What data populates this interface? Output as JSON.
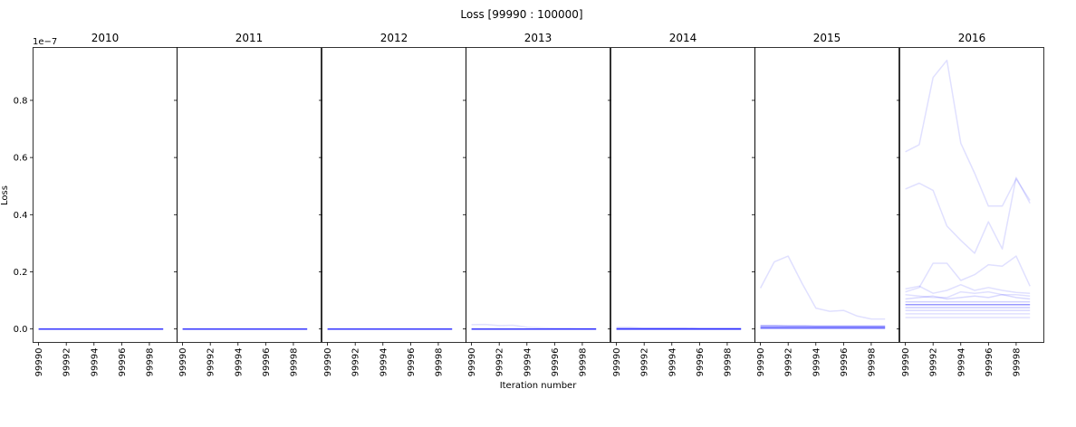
{
  "figure": {
    "suptitle": "Loss [99990 : 100000]",
    "xlabel": "Iteration number",
    "ylabel": "Loss",
    "offset_text": "1e−7"
  },
  "colors": {
    "line": "#0000ff",
    "background": "#ffffff",
    "axes": "#000000"
  },
  "chart_data": {
    "type": "line",
    "title": "Loss [99990 : 100000]",
    "xlabel": "Iteration number",
    "ylabel": "Loss",
    "y_scale_multiplier": 1e-07,
    "xlim": [
      99989.6,
      100000.0
    ],
    "ylim": [
      -0.047,
      0.985
    ],
    "x_ticks": [
      99990,
      99992,
      99994,
      99996,
      99998
    ],
    "y_ticks": [
      0.0,
      0.2,
      0.4,
      0.6,
      0.8
    ],
    "x": [
      99990,
      99991,
      99992,
      99993,
      99994,
      99995,
      99996,
      99997,
      99998,
      99999
    ],
    "grid": false,
    "legend": "none",
    "panels": [
      {
        "title": "2010",
        "series": [
          {
            "values": [
              0,
              0,
              0,
              0,
              0,
              0,
              0,
              0,
              0,
              0
            ],
            "opacity": 0.8
          }
        ]
      },
      {
        "title": "2011",
        "series": [
          {
            "values": [
              0,
              0,
              0,
              0,
              0,
              0,
              0,
              0,
              0,
              0
            ],
            "opacity": 0.8
          }
        ]
      },
      {
        "title": "2012",
        "series": [
          {
            "values": [
              0,
              0,
              0,
              0,
              0,
              0,
              0,
              0,
              0,
              0
            ],
            "opacity": 0.8
          }
        ]
      },
      {
        "title": "2013",
        "series": [
          {
            "values": [
              0.015,
              0.016,
              0.012,
              0.013,
              0.006,
              0.004,
              0.003,
              0.003,
              0.002,
              0.002
            ],
            "opacity": 0.12
          },
          {
            "values": [
              0,
              0,
              0,
              0,
              0,
              0,
              0,
              0,
              0,
              0
            ],
            "opacity": 0.8
          }
        ]
      },
      {
        "title": "2014",
        "series": [
          {
            "values": [
              0.004,
              0.004,
              0.003,
              0.003,
              0.003,
              0.003,
              0.002,
              0.002,
              0.002,
              0.002
            ],
            "opacity": 0.3
          },
          {
            "values": [
              0,
              0,
              0,
              0,
              0,
              0,
              0,
              0,
              0,
              0
            ],
            "opacity": 0.8
          }
        ]
      },
      {
        "title": "2015",
        "series": [
          {
            "values": [
              0.143,
              0.235,
              0.255,
              0.16,
              0.073,
              0.062,
              0.065,
              0.045,
              0.035,
              0.035
            ],
            "opacity": 0.12
          },
          {
            "values": [
              0.012,
              0.012,
              0.011,
              0.011,
              0.01,
              0.01,
              0.01,
              0.01,
              0.01,
              0.01
            ],
            "opacity": 0.3
          },
          {
            "values": [
              0.007,
              0.007,
              0.007,
              0.007,
              0.007,
              0.007,
              0.007,
              0.007,
              0.007,
              0.007
            ],
            "opacity": 0.35
          },
          {
            "values": [
              0.004,
              0.004,
              0.004,
              0.004,
              0.004,
              0.004,
              0.004,
              0.004,
              0.004,
              0.004
            ],
            "opacity": 0.35
          },
          {
            "values": [
              0.002,
              0.002,
              0.002,
              0.002,
              0.002,
              0.002,
              0.002,
              0.002,
              0.002,
              0.002
            ],
            "opacity": 0.35
          }
        ]
      },
      {
        "title": "2016",
        "series": [
          {
            "values": [
              0.62,
              0.645,
              0.88,
              0.94,
              0.65,
              0.545,
              0.43,
              0.43,
              0.525,
              0.45
            ],
            "opacity": 0.12
          },
          {
            "values": [
              0.49,
              0.51,
              0.485,
              0.36,
              0.31,
              0.265,
              0.375,
              0.28,
              0.53,
              0.44
            ],
            "opacity": 0.12
          },
          {
            "values": [
              0.13,
              0.145,
              0.23,
              0.23,
              0.17,
              0.19,
              0.225,
              0.22,
              0.255,
              0.15
            ],
            "opacity": 0.12
          },
          {
            "values": [
              0.14,
              0.15,
              0.125,
              0.135,
              0.155,
              0.135,
              0.145,
              0.135,
              0.128,
              0.125
            ],
            "opacity": 0.12
          },
          {
            "values": [
              0.12,
              0.115,
              0.11,
              0.11,
              0.13,
              0.125,
              0.13,
              0.12,
              0.12,
              0.115
            ],
            "opacity": 0.12
          },
          {
            "values": [
              0.105,
              0.11,
              0.115,
              0.105,
              0.11,
              0.115,
              0.11,
              0.12,
              0.11,
              0.105
            ],
            "opacity": 0.15
          },
          {
            "values": [
              0.095,
              0.095,
              0.095,
              0.095,
              0.095,
              0.095,
              0.095,
              0.095,
              0.095,
              0.095
            ],
            "opacity": 0.18
          },
          {
            "values": [
              0.085,
              0.085,
              0.085,
              0.085,
              0.085,
              0.085,
              0.085,
              0.085,
              0.085,
              0.085
            ],
            "opacity": 0.4
          },
          {
            "values": [
              0.075,
              0.075,
              0.075,
              0.075,
              0.075,
              0.075,
              0.075,
              0.075,
              0.075,
              0.075
            ],
            "opacity": 0.2
          },
          {
            "values": [
              0.065,
              0.065,
              0.065,
              0.065,
              0.065,
              0.065,
              0.065,
              0.065,
              0.065,
              0.065
            ],
            "opacity": 0.15
          },
          {
            "values": [
              0.053,
              0.053,
              0.053,
              0.053,
              0.053,
              0.053,
              0.053,
              0.053,
              0.053,
              0.053
            ],
            "opacity": 0.12
          },
          {
            "values": [
              0.04,
              0.04,
              0.04,
              0.04,
              0.04,
              0.04,
              0.04,
              0.04,
              0.04,
              0.04
            ],
            "opacity": 0.12
          }
        ]
      }
    ]
  }
}
